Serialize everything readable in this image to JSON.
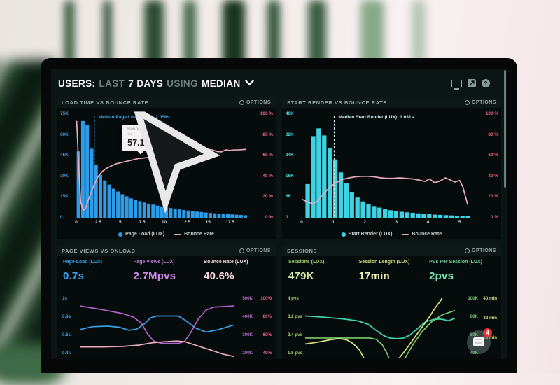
{
  "header": {
    "parts": [
      "USERS:",
      "LAST",
      "7 DAYS",
      "USING",
      "MEDIAN"
    ],
    "icons": [
      "display-icon",
      "share-icon",
      "help-icon"
    ]
  },
  "chat_widget": {
    "badge": "4"
  },
  "colors": {
    "page_load_blue": "#2f9ce8",
    "start_render_cyan": "#3ed2e2",
    "bounce_rose": "#e9abbc",
    "axis_pink": "#f2688c",
    "page_views_purple": "#b464cc",
    "sessions_green": "#7ac96e",
    "session_length_yellow": "#dce37e",
    "pvs_teal": "#3fd9b0"
  },
  "chart_data": [
    {
      "type": "bar-line",
      "title": "LOAD TIME VS BOUNCE RATE",
      "options_label": "OPTIONS",
      "left_axis": [
        "75K",
        "60K",
        "45K",
        "30K",
        "15K",
        "0"
      ],
      "right_axis": [
        "100 %",
        "80 %",
        "60 %",
        "40 %",
        "20 %",
        "0 %"
      ],
      "x_tick_values": [
        0,
        2.5,
        5,
        7.5,
        10,
        12.5,
        15,
        17.5
      ],
      "x_tick_labels": [
        "0",
        "2.5",
        "5",
        "7.5",
        "10",
        "12.5",
        "15",
        "17.5"
      ],
      "x_max": 19.6,
      "y_max": 75,
      "bar_start": 0.05,
      "bar_step": 0.5,
      "bar_color": "#2f9ce8",
      "line_color": "#e9abbc",
      "median_color": "#3aa3ea",
      "bars": [
        48,
        70,
        67,
        50,
        38,
        31,
        27,
        24,
        21,
        19,
        17,
        15.5,
        14,
        13,
        12,
        11,
        10.2,
        9.5,
        8.8,
        8.2,
        7.6,
        7,
        6.5,
        6,
        5.6,
        5.2,
        4.8,
        4.4,
        4.1,
        3.8,
        3.5,
        3.2,
        3,
        2.8,
        2.6,
        2.4,
        2.2,
        2,
        1.8
      ],
      "line": [
        [
          0.05,
          93
        ],
        [
          0.3,
          45
        ],
        [
          0.5,
          15
        ],
        [
          0.8,
          7
        ],
        [
          1.1,
          10
        ],
        [
          1.5,
          20
        ],
        [
          2,
          31
        ],
        [
          2.5,
          40
        ],
        [
          3,
          45
        ],
        [
          3.5,
          48
        ],
        [
          4,
          50
        ],
        [
          4.5,
          52
        ],
        [
          5,
          53
        ],
        [
          5.5,
          54
        ],
        [
          6,
          55
        ],
        [
          6.5,
          56
        ],
        [
          7,
          57.1
        ],
        [
          7.5,
          57.5
        ],
        [
          8,
          58
        ],
        [
          8.5,
          58
        ],
        [
          9,
          58.5
        ],
        [
          9.5,
          58
        ],
        [
          10,
          57.5
        ],
        [
          10.5,
          58
        ],
        [
          11,
          59
        ],
        [
          11.5,
          59.5
        ],
        [
          12,
          60
        ],
        [
          12.5,
          60.5
        ],
        [
          13,
          61
        ],
        [
          13.5,
          62
        ],
        [
          14,
          62.5
        ],
        [
          14.5,
          62
        ],
        [
          15,
          66
        ],
        [
          15.5,
          65.5
        ],
        [
          16,
          64
        ],
        [
          16.5,
          63.5
        ],
        [
          17,
          65.5
        ],
        [
          17.5,
          65
        ],
        [
          18,
          65.5
        ],
        [
          18.5,
          65.5
        ],
        [
          19.3,
          66
        ]
      ],
      "median": {
        "x": 2.056,
        "label": "Median Page Load (LUX): 2.056s"
      },
      "tooltip": {
        "x": 7,
        "pct": 57.1,
        "title": "Bounce Rate",
        "sub": "7s",
        "value": "57.1%"
      },
      "legend": [
        "Page Load (LUX)",
        "Bounce Rate"
      ]
    },
    {
      "type": "bar-line",
      "title": "START RENDER VS BOUNCE RATE",
      "options_label": "OPTIONS",
      "left_axis": [
        "40K",
        "32K",
        "24K",
        "16K",
        "8K",
        "0"
      ],
      "right_axis": [
        "100 %",
        "80 %",
        "60 %",
        "40 %",
        "20 %",
        "0 %"
      ],
      "x_tick_values": [
        0,
        1,
        2,
        3,
        4,
        5
      ],
      "x_tick_labels": [
        "0",
        "1",
        "2",
        "3",
        "4",
        "5"
      ],
      "x_max": 5.45,
      "y_max": 40,
      "bar_start": 0.12,
      "bar_step": 0.175,
      "bar_color": "#3ed2e2",
      "line_color": "#e9abbc",
      "median_color": "#cdeaed",
      "bars": [
        13,
        31.5,
        34.5,
        31.8,
        27,
        22.5,
        17.5,
        13.5,
        10,
        7.8,
        6.3,
        5.3,
        4.5,
        3.9,
        3.3,
        2.9,
        2.6,
        2.3,
        2.1,
        1.9,
        1.7,
        1.5,
        1.4,
        1.2,
        1.1,
        1.0,
        0.9,
        0.8,
        0.7,
        0.6
      ],
      "line": [
        [
          0,
          18
        ],
        [
          0.2,
          15
        ],
        [
          0.35,
          13.5
        ],
        [
          0.5,
          16
        ],
        [
          0.7,
          23
        ],
        [
          0.9,
          30
        ],
        [
          1.1,
          34
        ],
        [
          1.3,
          37
        ],
        [
          1.5,
          38.5
        ],
        [
          1.7,
          39.5
        ],
        [
          1.9,
          40
        ],
        [
          2.1,
          40
        ],
        [
          2.3,
          39.5
        ],
        [
          2.5,
          38.5
        ],
        [
          2.7,
          38
        ],
        [
          2.9,
          38
        ],
        [
          3.1,
          38.5
        ],
        [
          3.3,
          38
        ],
        [
          3.5,
          37.5
        ],
        [
          3.7,
          36.5
        ],
        [
          3.9,
          35
        ],
        [
          4.05,
          37.5
        ],
        [
          4.2,
          34
        ],
        [
          4.35,
          35
        ],
        [
          4.55,
          38.5
        ],
        [
          4.7,
          36.5
        ],
        [
          4.85,
          34.5
        ],
        [
          5.0,
          36
        ],
        [
          5.1,
          30
        ],
        [
          5.25,
          13
        ]
      ],
      "median": {
        "x": 1.031,
        "label": "Median Start Render (LUX): 1.031s"
      },
      "legend": [
        "Start Render (LUX)",
        "Bounce Rate"
      ]
    },
    {
      "type": "lines",
      "title": "PAGE VIEWS VS ONLOAD",
      "options_label": "OPTIONS",
      "metrics": [
        {
          "label": "Page Load (LUX)",
          "value": "0.7s"
        },
        {
          "label": "Page Views (LUX)",
          "value": "2.7Mpvs"
        },
        {
          "label": "Bounce Rate (LUX)",
          "value": "40.6%"
        }
      ],
      "left_axis": [
        "1s",
        "0.8s",
        "0.6s",
        "0.4s"
      ],
      "right_axis_1": [
        "500K",
        "400K",
        "300K",
        "200K"
      ],
      "right_axis_2": [
        "100%",
        "80%",
        "60%",
        "40%"
      ],
      "series": [
        {
          "name": "Page Load",
          "color": "#3aa3ea",
          "points": [
            [
              0,
              53
            ],
            [
              8,
              48
            ],
            [
              18,
              47
            ],
            [
              26,
              49
            ],
            [
              32,
              54
            ],
            [
              37,
              52
            ],
            [
              42,
              43
            ],
            [
              46,
              33
            ],
            [
              50,
              30
            ],
            [
              64,
              30
            ],
            [
              69,
              38
            ],
            [
              75,
              50
            ],
            [
              82,
              57
            ],
            [
              90,
              53
            ],
            [
              100,
              45
            ]
          ]
        },
        {
          "name": "Page Views",
          "color": "#b464cc",
          "points": [
            [
              0,
              13
            ],
            [
              14,
              19
            ],
            [
              28,
              26
            ],
            [
              35,
              32
            ],
            [
              40,
              42
            ],
            [
              44,
              60
            ],
            [
              48,
              72
            ],
            [
              53,
              76
            ],
            [
              64,
              76
            ],
            [
              68,
              73
            ],
            [
              72,
              58
            ],
            [
              77,
              35
            ],
            [
              82,
              20
            ],
            [
              87,
              15
            ],
            [
              100,
              13
            ]
          ]
        },
        {
          "name": "Bounce Rate",
          "color": "#e9abbc",
          "points": [
            [
              0,
              82
            ],
            [
              14,
              82
            ],
            [
              28,
              81
            ],
            [
              38,
              79
            ],
            [
              47,
              75
            ],
            [
              56,
              73
            ],
            [
              63,
              72
            ],
            [
              68,
              73
            ],
            [
              74,
              78
            ],
            [
              80,
              83
            ],
            [
              86,
              88
            ],
            [
              93,
              94
            ],
            [
              100,
              98
            ]
          ]
        }
      ]
    },
    {
      "type": "lines",
      "title": "SESSIONS",
      "options_label": "OPTIONS",
      "metrics": [
        {
          "label": "Sessions (LUX)",
          "value": "479K"
        },
        {
          "label": "Session Length (LUX)",
          "value": "17min"
        },
        {
          "label": "PVs Per Session (LUX)",
          "value": "2pvs"
        }
      ],
      "left_axis": [
        "4 pvs",
        "3.2 pvs",
        "2.4 pvs",
        "1.6 pvs"
      ],
      "right_axis_1": [
        "100K",
        "80K",
        "60K",
        "40K"
      ],
      "right_axis_2": [
        "40 min",
        "32 min",
        "24 min",
        ""
      ],
      "series": [
        {
          "name": "PVs Per Session",
          "color": "#3fd9b0",
          "points": [
            [
              0,
              30
            ],
            [
              12,
              32
            ],
            [
              25,
              35
            ],
            [
              34,
              38
            ],
            [
              41,
              44
            ],
            [
              46,
              54
            ],
            [
              51,
              63
            ],
            [
              55,
              67
            ],
            [
              60,
              68
            ],
            [
              64,
              67
            ],
            [
              68,
              62
            ],
            [
              73,
              51
            ],
            [
              78,
              40
            ],
            [
              83,
              36
            ],
            [
              87,
              35
            ],
            [
              90,
              36
            ],
            [
              93,
              38
            ],
            [
              97,
              34
            ]
          ]
        },
        {
          "name": "Sessions",
          "color": "#7ac96e",
          "points": [
            [
              0,
              67
            ],
            [
              15,
              67
            ],
            [
              30,
              67
            ],
            [
              42,
              67
            ],
            [
              46,
              69
            ],
            [
              50,
              78
            ],
            [
              53,
              92
            ],
            [
              56,
              110
            ],
            [
              60,
              118
            ],
            [
              65,
              100
            ],
            [
              70,
              78
            ],
            [
              76,
              56
            ],
            [
              82,
              40
            ],
            [
              89,
              28
            ],
            [
              97,
              21
            ]
          ]
        },
        {
          "name": "Session Length",
          "color": "#dce37e",
          "points": [
            [
              0,
              77
            ],
            [
              8,
              74
            ],
            [
              16,
              70
            ],
            [
              22,
              68
            ],
            [
              27,
              70
            ],
            [
              31,
              76
            ],
            [
              35,
              86
            ],
            [
              38,
              100
            ],
            [
              41,
              112
            ],
            [
              48,
              124
            ],
            [
              55,
              118
            ],
            [
              60,
              104
            ],
            [
              65,
              88
            ],
            [
              70,
              70
            ],
            [
              75,
              52
            ],
            [
              80,
              34
            ],
            [
              84,
              18
            ],
            [
              88,
              4
            ],
            [
              90,
              -6
            ]
          ]
        }
      ]
    }
  ]
}
